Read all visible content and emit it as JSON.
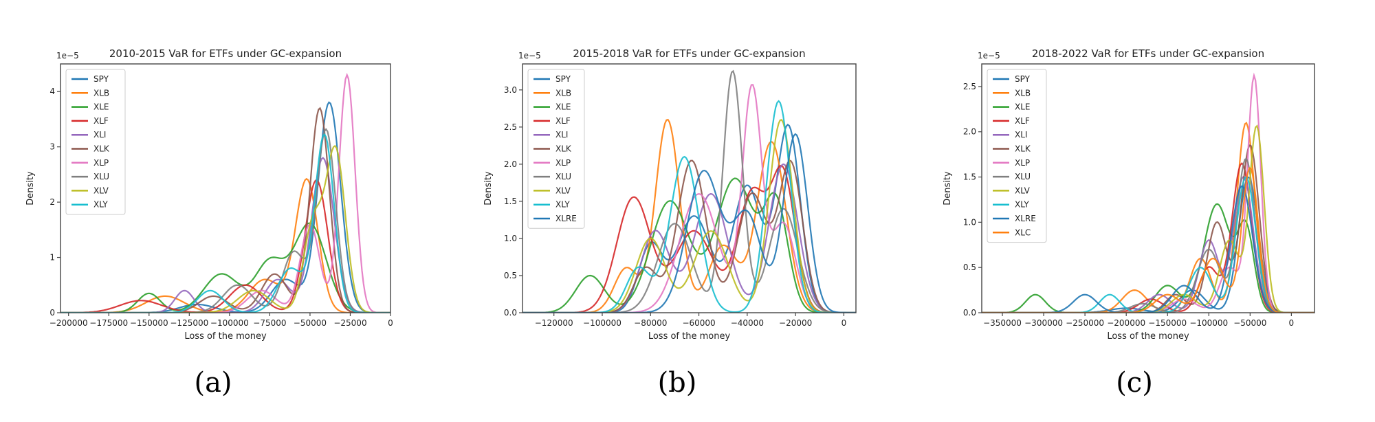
{
  "palette": [
    "#1f77b4",
    "#ff7f0e",
    "#2ca02c",
    "#d62728",
    "#9467bd",
    "#8c564b",
    "#e377c2",
    "#7f7f7f",
    "#bcbd22",
    "#17becf"
  ],
  "chart_data": [
    {
      "type": "line",
      "panel_label": "(a)",
      "title": "2010-2015 VaR for ETFs under GC-expansion",
      "xlabel": "Loss of the money",
      "ylabel": "Density",
      "y_scale_label": "1e−5",
      "xlim": [
        -205000,
        0
      ],
      "ylim": [
        0,
        4.5
      ],
      "x_ticks": [
        -200000,
        -175000,
        -150000,
        -125000,
        -100000,
        -75000,
        -50000,
        -25000,
        0
      ],
      "x_tick_labels": [
        "−200000",
        "−175000",
        "−150000",
        "−125000",
        "−100000",
        "−75000",
        "−50000",
        "−25000",
        "0"
      ],
      "y_ticks": [
        0,
        1,
        2,
        3,
        4
      ],
      "y_tick_labels": [
        "0",
        "1",
        "2",
        "3",
        "4"
      ],
      "legend_position": "upper-left",
      "grid": false,
      "series": [
        {
          "name": "SPY",
          "color": "#1f77b4",
          "peaks": [
            [
              -38000,
              3.8,
              7000
            ],
            [
              -65000,
              0.6,
              9000
            ],
            [
              -120000,
              0.15,
              11000
            ]
          ]
        },
        {
          "name": "XLB",
          "color": "#ff7f0e",
          "peaks": [
            [
              -52000,
              2.4,
              7000
            ],
            [
              -78000,
              0.6,
              10000
            ],
            [
              -140000,
              0.3,
              12000
            ]
          ]
        },
        {
          "name": "XLE",
          "color": "#2ca02c",
          "peaks": [
            [
              -50000,
              1.6,
              10000
            ],
            [
              -75000,
              0.9,
              9000
            ],
            [
              -105000,
              0.7,
              11000
            ],
            [
              -150000,
              0.35,
              7000
            ]
          ]
        },
        {
          "name": "XLF",
          "color": "#d62728",
          "peaks": [
            [
              -46000,
              2.4,
              7000
            ],
            [
              -90000,
              0.5,
              10000
            ],
            [
              -155000,
              0.22,
              13000
            ]
          ]
        },
        {
          "name": "XLI",
          "color": "#9467bd",
          "peaks": [
            [
              -42000,
              2.8,
              7000
            ],
            [
              -70000,
              0.6,
              8000
            ],
            [
              -128000,
              0.4,
              6000
            ]
          ]
        },
        {
          "name": "XLK",
          "color": "#8c564b",
          "peaks": [
            [
              -44000,
              3.7,
              6000
            ],
            [
              -72000,
              0.7,
              8000
            ],
            [
              -110000,
              0.3,
              9000
            ]
          ]
        },
        {
          "name": "XLP",
          "color": "#e377c2",
          "peaks": [
            [
              -27000,
              4.3,
              5000
            ],
            [
              -50000,
              1.6,
              6000
            ],
            [
              -80000,
              0.4,
              9000
            ]
          ]
        },
        {
          "name": "XLU",
          "color": "#7f7f7f",
          "peaks": [
            [
              -40000,
              3.3,
              6000
            ],
            [
              -60000,
              1.1,
              7000
            ],
            [
              -95000,
              0.5,
              9000
            ]
          ]
        },
        {
          "name": "XLV",
          "color": "#bcbd22",
          "peaks": [
            [
              -34000,
              2.9,
              6000
            ],
            [
              -48000,
              1.6,
              6000
            ],
            [
              -85000,
              0.4,
              10000
            ]
          ]
        },
        {
          "name": "XLY",
          "color": "#17becf",
          "peaks": [
            [
              -41000,
              3.2,
              6000
            ],
            [
              -62000,
              0.8,
              8000
            ],
            [
              -112000,
              0.4,
              8000
            ]
          ]
        }
      ]
    },
    {
      "type": "line",
      "panel_label": "(b)",
      "title": "2015-2018 VaR for ETFs under GC-expansion",
      "xlabel": "Loss of the money",
      "ylabel": "Density",
      "y_scale_label": "1e−5",
      "xlim": [
        -133000,
        5000
      ],
      "ylim": [
        0,
        3.35
      ],
      "x_ticks": [
        -120000,
        -100000,
        -80000,
        -60000,
        -40000,
        -20000,
        0
      ],
      "x_tick_labels": [
        "−120000",
        "−100000",
        "−80000",
        "−60000",
        "−40000",
        "−20000",
        "0"
      ],
      "y_ticks": [
        0,
        0.5,
        1.0,
        1.5,
        2.0,
        2.5,
        3.0
      ],
      "y_tick_labels": [
        "0.0",
        "0.5",
        "1.0",
        "1.5",
        "2.0",
        "2.5",
        "3.0"
      ],
      "legend_position": "upper-left",
      "grid": false,
      "series": [
        {
          "name": "SPY",
          "color": "#1f77b4",
          "peaks": [
            [
              -23000,
              2.5,
              5000
            ],
            [
              -40000,
              1.7,
              6000
            ],
            [
              -62000,
              1.3,
              7000
            ],
            [
              -80000,
              0.9,
              5000
            ]
          ]
        },
        {
          "name": "XLB",
          "color": "#ff7f0e",
          "peaks": [
            [
              -73000,
              2.6,
              5000
            ],
            [
              -50000,
              0.9,
              6000
            ],
            [
              -30000,
              2.3,
              6000
            ],
            [
              -90000,
              0.6,
              5000
            ]
          ]
        },
        {
          "name": "XLE",
          "color": "#2ca02c",
          "peaks": [
            [
              -105000,
              0.5,
              6000
            ],
            [
              -72000,
              1.5,
              8000
            ],
            [
              -45000,
              1.8,
              8000
            ],
            [
              -28000,
              1.4,
              5000
            ]
          ]
        },
        {
          "name": "XLF",
          "color": "#d62728",
          "peaks": [
            [
              -87000,
              1.55,
              7000
            ],
            [
              -62000,
              1.1,
              8000
            ],
            [
              -38000,
              1.6,
              6000
            ],
            [
              -25000,
              1.8,
              5000
            ]
          ]
        },
        {
          "name": "XLI",
          "color": "#9467bd",
          "peaks": [
            [
              -78000,
              1.1,
              6000
            ],
            [
              -55000,
              1.6,
              7000
            ],
            [
              -25000,
              2.0,
              6000
            ]
          ]
        },
        {
          "name": "XLK",
          "color": "#8c564b",
          "peaks": [
            [
              -63000,
              2.05,
              6000
            ],
            [
              -38000,
              1.6,
              6000
            ],
            [
              -22000,
              2.0,
              5000
            ],
            [
              -82000,
              0.6,
              5000
            ]
          ]
        },
        {
          "name": "XLP",
          "color": "#e377c2",
          "peaks": [
            [
              -38000,
              3.0,
              4000
            ],
            [
              -60000,
              1.6,
              8000
            ],
            [
              -25000,
              1.2,
              5000
            ]
          ]
        },
        {
          "name": "XLU",
          "color": "#7f7f7f",
          "peaks": [
            [
              -46000,
              3.25,
              4000
            ],
            [
              -70000,
              1.2,
              7000
            ],
            [
              -25000,
              1.4,
              6000
            ]
          ]
        },
        {
          "name": "XLV",
          "color": "#bcbd22",
          "peaks": [
            [
              -26000,
              2.6,
              5000
            ],
            [
              -55000,
              1.1,
              7000
            ],
            [
              -80000,
              1.0,
              6000
            ]
          ]
        },
        {
          "name": "XLY",
          "color": "#17becf",
          "peaks": [
            [
              -66000,
              2.1,
              6000
            ],
            [
              -27000,
              2.85,
              5000
            ],
            [
              -85000,
              0.6,
              5000
            ]
          ]
        },
        {
          "name": "XLRE",
          "color": "#1f77b4",
          "peaks": [
            [
              -20000,
              2.4,
              5000
            ],
            [
              -58000,
              1.9,
              7000
            ],
            [
              -40000,
              1.3,
              6000
            ]
          ]
        }
      ]
    },
    {
      "type": "line",
      "panel_label": "(c)",
      "title": "2018-2022 VaR for ETFs under GC-expansion",
      "xlabel": "Loss of the money",
      "ylabel": "Density",
      "y_scale_label": "1e−5",
      "xlim": [
        -375000,
        28000
      ],
      "ylim": [
        0,
        2.75
      ],
      "x_ticks": [
        -350000,
        -300000,
        -250000,
        -200000,
        -150000,
        -100000,
        -50000,
        0
      ],
      "x_tick_labels": [
        "−350000",
        "−300000",
        "−250000",
        "−200000",
        "−150000",
        "−100000",
        "−50000",
        "0"
      ],
      "y_ticks": [
        0,
        0.5,
        1.0,
        1.5,
        2.0,
        2.5
      ],
      "y_tick_labels": [
        "0.0",
        "0.5",
        "1.0",
        "1.5",
        "2.0",
        "2.5"
      ],
      "legend_position": "upper-left",
      "grid": false,
      "series": [
        {
          "name": "SPY",
          "color": "#1f77b4",
          "peaks": [
            [
              -52000,
              1.5,
              12000
            ],
            [
              -120000,
              0.25,
              15000
            ],
            [
              -200000,
              0.05,
              20000
            ]
          ]
        },
        {
          "name": "XLB",
          "color": "#ff7f0e",
          "peaks": [
            [
              -55000,
              2.1,
              11000
            ],
            [
              -110000,
              0.6,
              13000
            ],
            [
              -190000,
              0.25,
              15000
            ]
          ]
        },
        {
          "name": "XLE",
          "color": "#2ca02c",
          "peaks": [
            [
              -310000,
              0.2,
              12000
            ],
            [
              -90000,
              1.2,
              16000
            ],
            [
              -55000,
              0.9,
              10000
            ],
            [
              -150000,
              0.3,
              15000
            ]
          ]
        },
        {
          "name": "XLF",
          "color": "#d62728",
          "peaks": [
            [
              -60000,
              1.65,
              12000
            ],
            [
              -100000,
              0.5,
              12000
            ],
            [
              -170000,
              0.15,
              15000
            ]
          ]
        },
        {
          "name": "XLI",
          "color": "#9467bd",
          "peaks": [
            [
              -58000,
              1.5,
              12000
            ],
            [
              -100000,
              0.8,
              12000
            ],
            [
              -160000,
              0.2,
              14000
            ]
          ]
        },
        {
          "name": "XLK",
          "color": "#8c564b",
          "peaks": [
            [
              -50000,
              1.85,
              11000
            ],
            [
              -90000,
              1.0,
              12000
            ],
            [
              -140000,
              0.2,
              12000
            ]
          ]
        },
        {
          "name": "XLP",
          "color": "#e377c2",
          "peaks": [
            [
              -45000,
              2.6,
              8000
            ],
            [
              -75000,
              0.5,
              12000
            ],
            [
              -130000,
              0.15,
              15000
            ]
          ]
        },
        {
          "name": "XLU",
          "color": "#7f7f7f",
          "peaks": [
            [
              -55000,
              1.7,
              11000
            ],
            [
              -100000,
              0.7,
              14000
            ],
            [
              -180000,
              0.1,
              15000
            ]
          ]
        },
        {
          "name": "XLV",
          "color": "#bcbd22",
          "peaks": [
            [
              -42000,
              2.05,
              9000
            ],
            [
              -75000,
              0.8,
              12000
            ],
            [
              -130000,
              0.2,
              15000
            ]
          ]
        },
        {
          "name": "XLY",
          "color": "#17becf",
          "peaks": [
            [
              -55000,
              1.5,
              12000
            ],
            [
              -110000,
              0.5,
              14000
            ],
            [
              -220000,
              0.2,
              12000
            ]
          ]
        },
        {
          "name": "XLRE",
          "color": "#1f77b4",
          "peaks": [
            [
              -60000,
              1.4,
              13000
            ],
            [
              -130000,
              0.3,
              15000
            ],
            [
              -250000,
              0.2,
              14000
            ]
          ]
        },
        {
          "name": "XLC",
          "color": "#ff7f0e",
          "peaks": [
            [
              -50000,
              1.6,
              10000
            ],
            [
              -95000,
              0.6,
              14000
            ],
            [
              -150000,
              0.2,
              15000
            ]
          ]
        }
      ]
    }
  ]
}
